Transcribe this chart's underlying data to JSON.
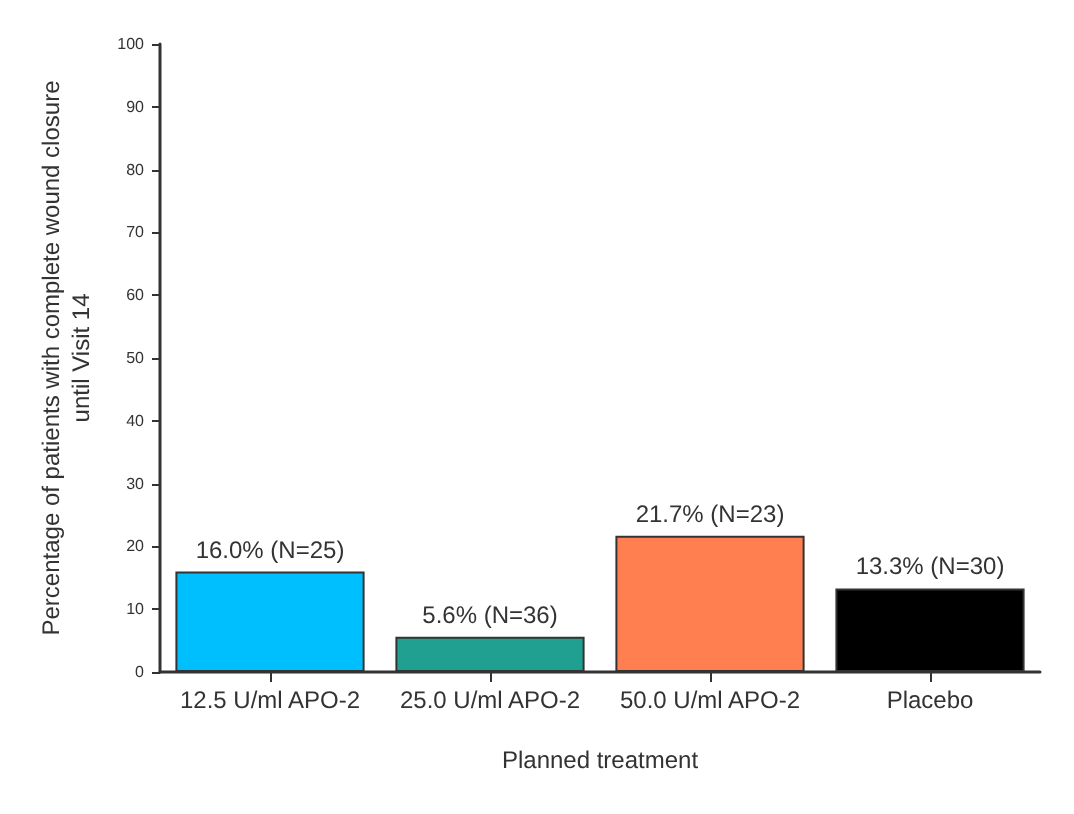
{
  "chart_data": {
    "type": "bar",
    "categories": [
      "12.5 U/ml APO-2",
      "25.0 U/ml APO-2",
      "50.0 U/ml APO-2",
      "Placebo"
    ],
    "values": [
      16.0,
      5.6,
      21.7,
      13.3
    ],
    "colors": [
      "#00bfff",
      "#20a090",
      "#ff7f50",
      "#000000"
    ],
    "value_labels": [
      "16.0% (N=25)",
      "5.6% (N=36)",
      "21.7% (N=23)",
      "13.3% (N=30)"
    ],
    "xlabel": "Planned treatment",
    "ylabel": "Percentage of patients with complete wound closure\nuntil Visit 14",
    "ylim": [
      0,
      100
    ],
    "yticks": [
      0,
      10,
      20,
      30,
      40,
      50,
      60,
      70,
      80,
      90,
      100
    ]
  }
}
